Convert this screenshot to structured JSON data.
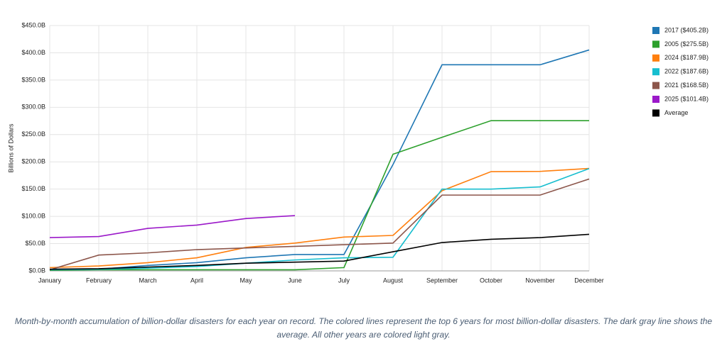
{
  "chart_data": {
    "type": "line",
    "ylabel": "Billions of Dollars",
    "categories": [
      "January",
      "February",
      "March",
      "April",
      "May",
      "June",
      "July",
      "August",
      "September",
      "October",
      "November",
      "December"
    ],
    "ylim": [
      0,
      450
    ],
    "yticks": [
      {
        "value": 0,
        "label": "$0.0B"
      },
      {
        "value": 50,
        "label": "$50.0B"
      },
      {
        "value": 100,
        "label": "$100.0B"
      },
      {
        "value": 150,
        "label": "$150.0B"
      },
      {
        "value": 200,
        "label": "$200.0B"
      },
      {
        "value": 250,
        "label": "$250.0B"
      },
      {
        "value": 300,
        "label": "$300.0B"
      },
      {
        "value": 350,
        "label": "$350.0B"
      },
      {
        "value": 400,
        "label": "$400.0B"
      },
      {
        "value": 450,
        "label": "$450.0B"
      }
    ],
    "grid": true,
    "legend": "right",
    "series": [
      {
        "name": "2017 ($405.2B)",
        "color": "#1f77b4",
        "values": [
          3,
          3,
          10,
          15,
          24,
          30,
          30,
          195,
          378,
          378,
          378,
          405.2
        ]
      },
      {
        "name": "2005 ($275.5B)",
        "color": "#2ca02c",
        "values": [
          1,
          2,
          2,
          2,
          2,
          2,
          6,
          214,
          245,
          275.5,
          275.5,
          275.5
        ]
      },
      {
        "name": "2024 ($187.9B)",
        "color": "#ff7f0e",
        "values": [
          6,
          9,
          15,
          24,
          43,
          51,
          62,
          65,
          147,
          182,
          182.5,
          187.9
        ]
      },
      {
        "name": "2022 ($187.6B)",
        "color": "#17becf",
        "values": [
          2,
          3,
          5,
          8,
          14,
          20,
          24,
          25,
          150,
          150,
          154,
          187.6
        ]
      },
      {
        "name": "2021 ($168.5B)",
        "color": "#8c564b",
        "values": [
          2,
          29,
          33,
          39,
          42,
          45,
          48,
          51,
          139,
          139,
          139,
          168.5
        ]
      },
      {
        "name": "2025 ($101.4B)",
        "color": "#9b19c9",
        "values": [
          61,
          63,
          78,
          84,
          96,
          101.4,
          null,
          null,
          null,
          null,
          null,
          null
        ]
      },
      {
        "name": "Average",
        "color": "#000000",
        "values": [
          3,
          4,
          7,
          10,
          14,
          16,
          18,
          35,
          52,
          58,
          61,
          67
        ]
      }
    ],
    "caption": "Month-by-month accumulation of billion-dollar disasters for each year on record. The colored lines represent the top 6 years for most billion-dollar disasters. The dark gray line shows the average. All other years are colored light gray."
  }
}
